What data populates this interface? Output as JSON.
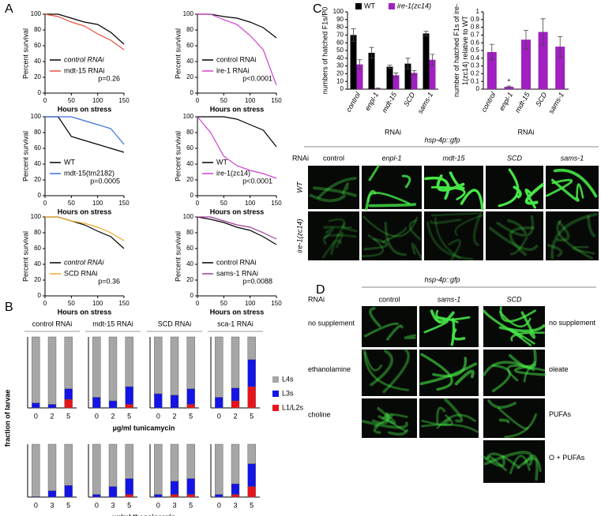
{
  "panel_labels": [
    "A",
    "B",
    "C",
    "D"
  ],
  "chart_data": [
    {
      "type": "line",
      "xlabel": "Hours on stress",
      "ylabel": "Percent survival",
      "x": [
        0,
        25,
        50,
        75,
        100,
        125,
        150
      ],
      "xlim": [
        0,
        150
      ],
      "xticks": [
        0,
        50,
        100,
        150
      ],
      "ylim": [
        0,
        100
      ],
      "yticks": [
        0,
        20,
        40,
        60,
        80,
        100
      ],
      "annotation": "p=0.26",
      "series": [
        {
          "name": "control RNAi",
          "color": "#000000",
          "values": [
            100,
            100,
            95,
            90,
            87,
            77,
            62
          ]
        },
        {
          "name": "mdt-15 RNAi",
          "color": "#e8503a",
          "values": [
            100,
            97,
            90,
            85,
            75,
            67,
            55
          ]
        }
      ]
    },
    {
      "type": "line",
      "xlabel": "Hours on stress",
      "ylabel": "Percent survival",
      "x": [
        0,
        25,
        50,
        75,
        100,
        125,
        150
      ],
      "xlim": [
        0,
        150
      ],
      "xticks": [
        0,
        50,
        100,
        150
      ],
      "ylim": [
        0,
        100
      ],
      "yticks": [
        0,
        20,
        40,
        60,
        80,
        100
      ],
      "annotation": "p<0.0001",
      "series": [
        {
          "name": "control RNAi",
          "color": "#000000",
          "values": [
            100,
            100,
            97,
            95,
            90,
            83,
            70
          ]
        },
        {
          "name": "ire-1 RNAi",
          "color": "#d040d0",
          "values": [
            100,
            100,
            93,
            87,
            73,
            55,
            10
          ]
        }
      ]
    },
    {
      "type": "line",
      "xlabel": "Hours on stress",
      "ylabel": "Percent survival",
      "x": [
        0,
        25,
        50,
        75,
        100,
        125,
        150
      ],
      "xlim": [
        0,
        150
      ],
      "xticks": [
        0,
        50,
        100,
        150
      ],
      "ylim": [
        0,
        100
      ],
      "yticks": [
        0,
        20,
        40,
        60,
        80,
        100
      ],
      "annotation": "p=0.0005",
      "series": [
        {
          "name": "WT",
          "color": "#000000",
          "values": [
            100,
            100,
            75,
            70,
            65,
            60,
            55
          ]
        },
        {
          "name": "mdt-15(tm2182)",
          "color": "#3a6fd8",
          "values": [
            100,
            100,
            100,
            95,
            90,
            85,
            65
          ]
        }
      ]
    },
    {
      "type": "line",
      "xlabel": "Hours on stress",
      "ylabel": "Percent survival",
      "x": [
        0,
        25,
        50,
        75,
        100,
        125,
        150
      ],
      "xlim": [
        0,
        150
      ],
      "xticks": [
        0,
        50,
        100,
        150
      ],
      "ylim": [
        0,
        100
      ],
      "yticks": [
        0,
        20,
        40,
        60,
        80,
        100
      ],
      "annotation": "p<0.0001",
      "series": [
        {
          "name": "WT",
          "color": "#000000",
          "values": [
            100,
            100,
            100,
            97,
            90,
            83,
            62
          ]
        },
        {
          "name": "ire-1(zc14)",
          "color": "#d040d0",
          "values": [
            100,
            80,
            50,
            38,
            32,
            28,
            22
          ]
        }
      ]
    },
    {
      "type": "line",
      "xlabel": "Hours on stress",
      "ylabel": "Percent survival",
      "x": [
        0,
        25,
        50,
        75,
        100,
        125,
        150
      ],
      "xlim": [
        0,
        150
      ],
      "xticks": [
        0,
        50,
        100,
        150
      ],
      "ylim": [
        0,
        100
      ],
      "yticks": [
        0,
        20,
        40,
        60,
        80,
        100
      ],
      "annotation": "p=0.36",
      "series": [
        {
          "name": "control RNAi",
          "color": "#000000",
          "values": [
            100,
            100,
            95,
            90,
            82,
            75,
            60
          ]
        },
        {
          "name": "SCD RNAi",
          "color": "#f0a830",
          "values": [
            100,
            100,
            95,
            92,
            87,
            80,
            70
          ]
        }
      ]
    },
    {
      "type": "line",
      "xlabel": "Hours on stress",
      "ylabel": "Percent survival",
      "x": [
        0,
        25,
        50,
        75,
        100,
        125,
        150
      ],
      "xlim": [
        0,
        150
      ],
      "xticks": [
        0,
        50,
        100,
        150
      ],
      "ylim": [
        0,
        100
      ],
      "yticks": [
        0,
        20,
        40,
        60,
        80,
        100
      ],
      "annotation": "p=0.0088",
      "series": [
        {
          "name": "control RNAi",
          "color": "#000000",
          "values": [
            100,
            97,
            93,
            87,
            83,
            75,
            65
          ]
        },
        {
          "name": "sams-1 RNAi",
          "color": "#9b3a9b",
          "values": [
            100,
            100,
            95,
            90,
            87,
            80,
            72
          ]
        }
      ]
    },
    {
      "type": "stacked_bar",
      "title": "control RNAi",
      "xlabel": "µg/ml tunicamycin",
      "ylabel": "fraction of larvae",
      "categories": [
        "0",
        "2",
        "5"
      ],
      "ylim": [
        0,
        1
      ],
      "series": [
        {
          "name": "L1/L2s",
          "color": "#e8141b",
          "values": [
            0,
            0,
            0.12
          ]
        },
        {
          "name": "L3s",
          "color": "#1414e6",
          "values": [
            0.07,
            0.05,
            0.15
          ]
        },
        {
          "name": "L4s",
          "color": "#a6a6a6",
          "values": [
            0.93,
            0.95,
            0.73
          ]
        }
      ]
    },
    {
      "type": "stacked_bar",
      "title": "mdt-15 RNAi",
      "categories": [
        "0",
        "2",
        "5"
      ],
      "ylim": [
        0,
        1
      ],
      "series": [
        {
          "color": "#e8141b",
          "values": [
            0,
            0,
            0.05
          ]
        },
        {
          "color": "#1414e6",
          "values": [
            0.15,
            0.1,
            0.25
          ]
        },
        {
          "color": "#a6a6a6",
          "values": [
            0.85,
            0.9,
            0.7
          ]
        }
      ]
    },
    {
      "type": "stacked_bar",
      "title": "SCD RNAi",
      "categories": [
        "0",
        "2",
        "5"
      ],
      "ylim": [
        0,
        1
      ],
      "series": [
        {
          "color": "#e8141b",
          "values": [
            0,
            0,
            0.05
          ]
        },
        {
          "color": "#1414e6",
          "values": [
            0.2,
            0.18,
            0.22
          ]
        },
        {
          "color": "#a6a6a6",
          "values": [
            0.8,
            0.82,
            0.73
          ]
        }
      ]
    },
    {
      "type": "stacked_bar",
      "title": "sca-1 RNAi",
      "categories": [
        "0",
        "2",
        "5"
      ],
      "ylim": [
        0,
        1
      ],
      "series": [
        {
          "color": "#e8141b",
          "values": [
            0,
            0.1,
            0.3
          ]
        },
        {
          "color": "#1414e6",
          "values": [
            0.15,
            0.18,
            0.38
          ]
        },
        {
          "color": "#a6a6a6",
          "values": [
            0.85,
            0.72,
            0.32
          ]
        }
      ]
    },
    {
      "type": "stacked_bar",
      "xlabel": "µg/ml thapsigargin",
      "categories": [
        "0",
        "3",
        "5"
      ],
      "ylim": [
        0,
        1
      ],
      "series": [
        {
          "color": "#e8141b",
          "values": [
            0,
            0,
            0
          ]
        },
        {
          "color": "#1414e6",
          "values": [
            0.01,
            0.12,
            0.22
          ]
        },
        {
          "color": "#a6a6a6",
          "values": [
            0.99,
            0.88,
            0.78
          ]
        }
      ]
    },
    {
      "type": "stacked_bar",
      "categories": [
        "0",
        "3",
        "5"
      ],
      "ylim": [
        0,
        1
      ],
      "series": [
        {
          "color": "#e8141b",
          "values": [
            0,
            0,
            0.05
          ]
        },
        {
          "color": "#1414e6",
          "values": [
            0.05,
            0.2,
            0.3
          ]
        },
        {
          "color": "#a6a6a6",
          "values": [
            0.95,
            0.8,
            0.65
          ]
        }
      ]
    },
    {
      "type": "stacked_bar",
      "categories": [
        "0",
        "3",
        "5"
      ],
      "ylim": [
        0,
        1
      ],
      "series": [
        {
          "color": "#e8141b",
          "values": [
            0,
            0.05,
            0.05
          ]
        },
        {
          "color": "#1414e6",
          "values": [
            0.05,
            0.25,
            0.3
          ]
        },
        {
          "color": "#a6a6a6",
          "values": [
            0.95,
            0.7,
            0.65
          ]
        }
      ]
    },
    {
      "type": "stacked_bar",
      "categories": [
        "0",
        "3",
        "5"
      ],
      "ylim": [
        0,
        1
      ],
      "series": [
        {
          "color": "#e8141b",
          "values": [
            0,
            0.05,
            0.2
          ]
        },
        {
          "color": "#1414e6",
          "values": [
            0.05,
            0.2,
            0.43
          ]
        },
        {
          "color": "#a6a6a6",
          "values": [
            0.95,
            0.75,
            0.37
          ]
        }
      ]
    },
    {
      "type": "bar",
      "ylabel": "numbers of hatched F1s/P0",
      "xlabel": "RNAi",
      "categories": [
        "control",
        "enpl-1",
        "mdt-15",
        "SCD",
        "sams-1"
      ],
      "ylim": [
        0,
        100
      ],
      "yticks": [
        0,
        10,
        20,
        30,
        40,
        50,
        60,
        70,
        80,
        90,
        100
      ],
      "series": [
        {
          "name": "WT",
          "color": "#000000",
          "values": [
            70,
            47,
            29,
            33,
            72
          ],
          "errors": [
            8,
            7,
            2,
            7,
            3
          ]
        },
        {
          "name": "ire-1(zc14)",
          "color": "#a020c0",
          "values": [
            32,
            1,
            18,
            21,
            38
          ],
          "errors": [
            6,
            0.5,
            3,
            3,
            7
          ]
        }
      ]
    },
    {
      "type": "bar",
      "ylabel": "number of hatched F1s of ire-1(zc14) relative to WT",
      "xlabel": "RNAi",
      "categories": [
        "control",
        "enpl-1",
        "mdt-15",
        "SCD",
        "sams-1"
      ],
      "ylim": [
        0,
        1
      ],
      "yticks": [
        0,
        0.1,
        0.2,
        0.3,
        0.4,
        0.5,
        0.6,
        0.7,
        0.8,
        0.9,
        1
      ],
      "annotation": "*",
      "series": [
        {
          "color": "#a020c0",
          "values": [
            0.48,
            0.03,
            0.64,
            0.74,
            0.55
          ],
          "errors": [
            0.1,
            0.01,
            0.12,
            0.17,
            0.13
          ]
        }
      ]
    }
  ],
  "micrographs_c": {
    "title": "hsp-4p::gfp",
    "rnai_label": "RNAi",
    "columns": [
      "control",
      "enpl-1",
      "mdt-15",
      "SCD",
      "sams-1"
    ],
    "rows": [
      "WT",
      "ire-1(zc14)"
    ]
  },
  "micrographs_d": {
    "title": "hsp-4p::gfp",
    "rnai_label": "RNAi",
    "columns": [
      "control",
      "sams-1",
      "SCD"
    ],
    "rows_left": [
      "no supplement",
      "ethanolamine",
      "choline"
    ],
    "rows_right": [
      "no supplement",
      "oleate",
      "PUFAs",
      "O + PUFAs"
    ]
  }
}
